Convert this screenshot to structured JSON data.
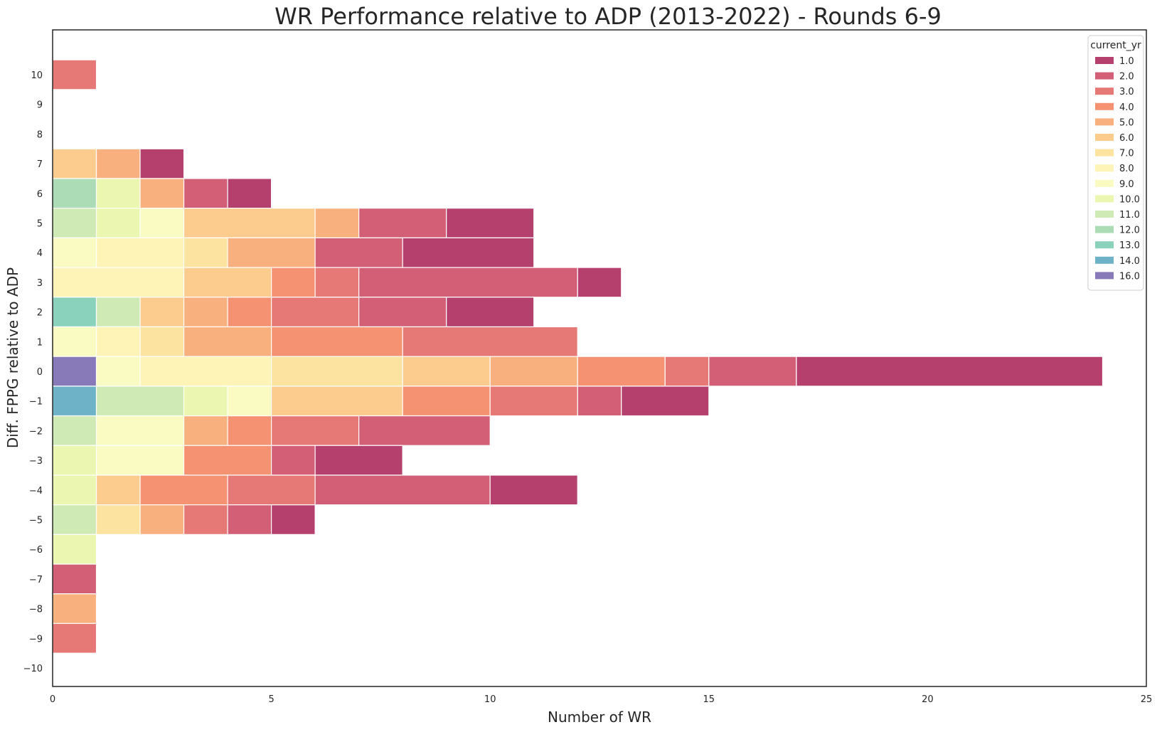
{
  "chart_data": {
    "type": "bar",
    "orientation": "horizontal",
    "stacked": true,
    "title": "WR Performance relative to ADP (2013-2022) - Rounds 6-9",
    "xlabel": "Number of WR",
    "ylabel": "Diff. FPPG relative to ADP",
    "xlim": [
      0,
      25
    ],
    "ylim": [
      -10,
      10
    ],
    "x_ticks": [
      "0",
      "5",
      "10",
      "15",
      "20",
      "25"
    ],
    "y_ticks": [
      "10",
      "9",
      "8",
      "7",
      "6",
      "5",
      "4",
      "3",
      "2",
      "1",
      "0",
      "−1",
      "−2",
      "−3",
      "−4",
      "−5",
      "−6",
      "−7",
      "−8",
      "−9",
      "−10"
    ],
    "grid": false,
    "legend": {
      "title": "current_yr",
      "position": "top-right",
      "entries": [
        {
          "label": "1.0",
          "color": "#b5406e"
        },
        {
          "label": "2.0",
          "color": "#d25f76"
        },
        {
          "label": "3.0",
          "color": "#e67876"
        },
        {
          "label": "4.0",
          "color": "#f59272"
        },
        {
          "label": "5.0",
          "color": "#f9b07f"
        },
        {
          "label": "6.0",
          "color": "#fccc8f"
        },
        {
          "label": "7.0",
          "color": "#fde3a0"
        },
        {
          "label": "8.0",
          "color": "#fef4b7"
        },
        {
          "label": "9.0",
          "color": "#fafbc2"
        },
        {
          "label": "10.0",
          "color": "#ebf6b0"
        },
        {
          "label": "11.0",
          "color": "#cfeab4"
        },
        {
          "label": "12.0",
          "color": "#acdcb5"
        },
        {
          "label": "13.0",
          "color": "#8ad2bb"
        },
        {
          "label": "14.0",
          "color": "#6db2c6"
        },
        {
          "label": "16.0",
          "color": "#8879b8"
        }
      ]
    },
    "series_order_left_to_right": [
      "16.0",
      "14.0",
      "13.0",
      "12.0",
      "11.0",
      "10.0",
      "9.0",
      "8.0",
      "7.0",
      "6.0",
      "5.0",
      "4.0",
      "3.0",
      "2.0",
      "1.0"
    ],
    "rows": [
      {
        "y": 10,
        "counts": {
          "3.0": 1
        }
      },
      {
        "y": 9,
        "counts": {}
      },
      {
        "y": 8,
        "counts": {}
      },
      {
        "y": 7,
        "counts": {
          "6.0": 1,
          "5.0": 1,
          "1.0": 1
        }
      },
      {
        "y": 6,
        "counts": {
          "12.0": 1,
          "10.0": 1,
          "5.0": 1,
          "2.0": 1,
          "1.0": 1
        }
      },
      {
        "y": 5,
        "counts": {
          "11.0": 1,
          "10.0": 1,
          "9.0": 1,
          "6.0": 3,
          "5.0": 1,
          "2.0": 2,
          "1.0": 2
        }
      },
      {
        "y": 4,
        "counts": {
          "9.0": 1,
          "8.0": 2,
          "7.0": 1,
          "5.0": 2,
          "2.0": 2,
          "1.0": 3
        }
      },
      {
        "y": 3,
        "counts": {
          "8.0": 3,
          "6.0": 2,
          "4.0": 1,
          "3.0": 1,
          "2.0": 5,
          "1.0": 1
        }
      },
      {
        "y": 2,
        "counts": {
          "13.0": 1,
          "11.0": 1,
          "6.0": 1,
          "5.0": 1,
          "4.0": 1,
          "3.0": 2,
          "2.0": 2,
          "1.0": 2
        }
      },
      {
        "y": 1,
        "counts": {
          "9.0": 1,
          "8.0": 1,
          "7.0": 1,
          "5.0": 2,
          "4.0": 3,
          "3.0": 4
        }
      },
      {
        "y": 0,
        "counts": {
          "16.0": 1,
          "9.0": 1,
          "8.0": 3,
          "7.0": 3,
          "6.0": 2,
          "5.0": 2,
          "4.0": 2,
          "3.0": 1,
          "2.0": 2,
          "1.0": 7
        }
      },
      {
        "y": -1,
        "counts": {
          "14.0": 1,
          "11.0": 2,
          "10.0": 1,
          "9.0": 1,
          "6.0": 3,
          "4.0": 2,
          "3.0": 2,
          "2.0": 1,
          "1.0": 2
        }
      },
      {
        "y": -2,
        "counts": {
          "11.0": 1,
          "9.0": 2,
          "5.0": 1,
          "4.0": 1,
          "3.0": 2,
          "2.0": 3
        }
      },
      {
        "y": -3,
        "counts": {
          "10.0": 1,
          "9.0": 2,
          "4.0": 2,
          "2.0": 1,
          "1.0": 2
        }
      },
      {
        "y": -4,
        "counts": {
          "10.0": 1,
          "6.0": 1,
          "4.0": 2,
          "3.0": 2,
          "2.0": 4,
          "1.0": 2
        }
      },
      {
        "y": -5,
        "counts": {
          "11.0": 1,
          "7.0": 1,
          "5.0": 1,
          "3.0": 1,
          "2.0": 1,
          "1.0": 1
        }
      },
      {
        "y": -6,
        "counts": {
          "10.0": 1
        }
      },
      {
        "y": -7,
        "counts": {
          "2.0": 1
        }
      },
      {
        "y": -8,
        "counts": {
          "5.0": 1
        }
      },
      {
        "y": -9,
        "counts": {
          "3.0": 1
        }
      },
      {
        "y": -10,
        "counts": {}
      }
    ]
  }
}
